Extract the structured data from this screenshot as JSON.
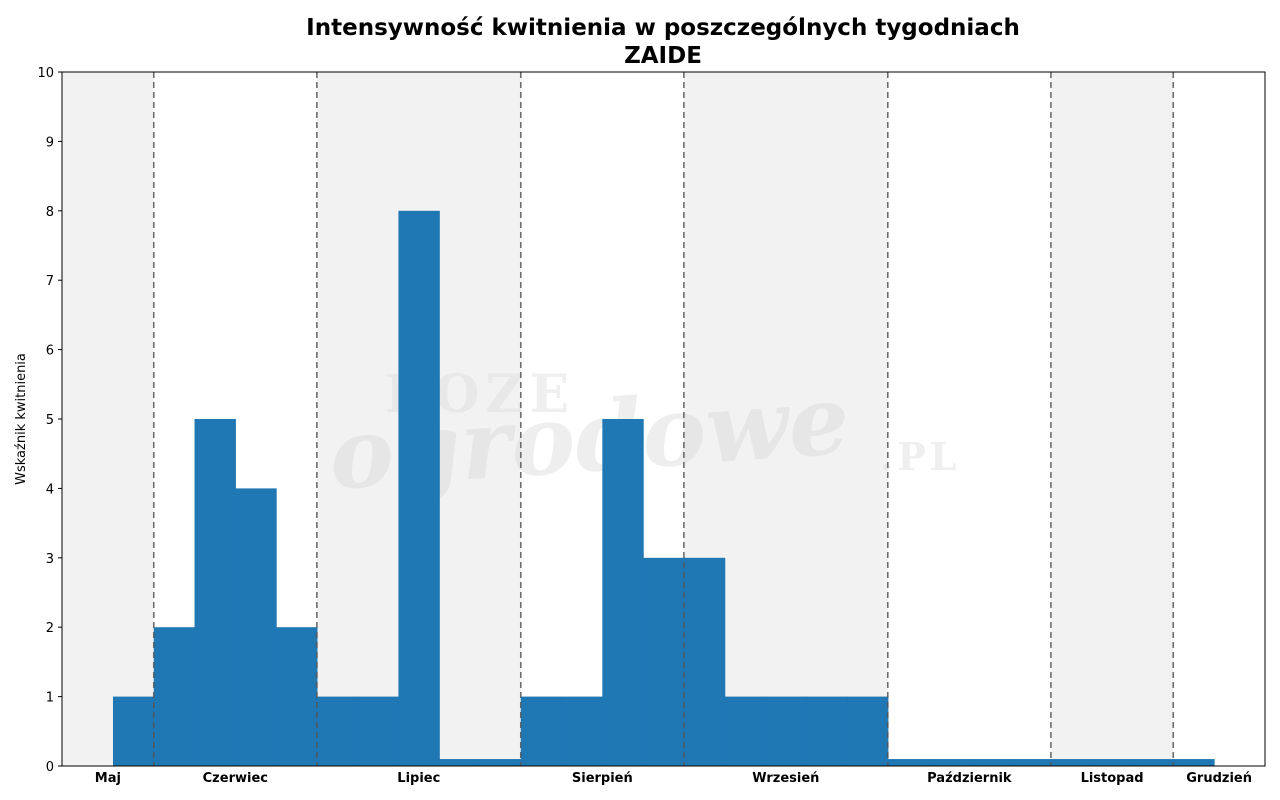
{
  "chart_data": {
    "type": "bar",
    "title": "Intensywność kwitnienia w poszczególnych tygodniach",
    "subtitle": "ZAIDE",
    "ylabel": "Wskaźnik kwitnienia",
    "xlabel": "",
    "ylim": [
      0,
      10
    ],
    "yticks": [
      "0",
      "1",
      "2",
      "3",
      "4",
      "5",
      "6",
      "7",
      "8",
      "9",
      "10"
    ],
    "grid": false,
    "weeks_start": 0,
    "values": [
      1,
      2,
      5,
      4,
      2,
      1,
      1,
      8,
      0.1,
      0.1,
      1,
      1,
      5,
      3,
      3,
      1,
      1,
      1,
      1,
      0.1,
      0.1,
      0.1,
      0.1,
      0.1,
      0.1,
      0.1,
      0.1
    ],
    "months": [
      {
        "label": "Maj",
        "start": -1.25,
        "end": 1,
        "shaded": true
      },
      {
        "label": "Czerwiec",
        "start": 1,
        "end": 5,
        "shaded": false
      },
      {
        "label": "Lipiec",
        "start": 5,
        "end": 10,
        "shaded": true
      },
      {
        "label": "Sierpień",
        "start": 10,
        "end": 14,
        "shaded": false
      },
      {
        "label": "Wrzesień",
        "start": 14,
        "end": 19,
        "shaded": true
      },
      {
        "label": "Październik",
        "start": 19,
        "end": 23,
        "shaded": false
      },
      {
        "label": "Listopad",
        "start": 23,
        "end": 26,
        "shaded": true
      },
      {
        "label": "Grudzień",
        "start": 26,
        "end": 28.25,
        "shaded": false
      }
    ],
    "bar_color": "#1f77b4",
    "shade_color": "#f2f2f2",
    "divider_color": "#555555"
  },
  "watermark": {
    "line1": "ROZE",
    "line2": "ogrodowe",
    "line3": ".PL"
  }
}
